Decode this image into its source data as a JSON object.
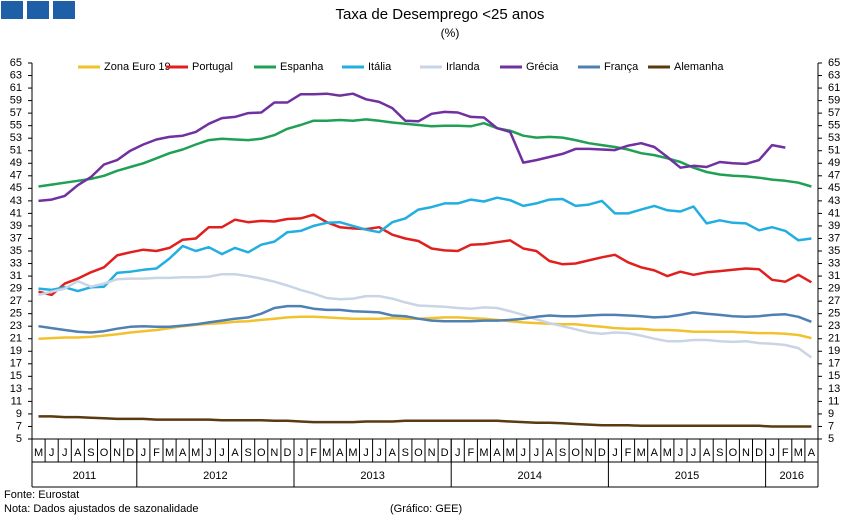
{
  "chart_data": {
    "type": "line",
    "title": "Taxa de Desemprego <25 anos",
    "subtitle": "(%)",
    "categories": [
      "M",
      "J",
      "J",
      "A",
      "S",
      "O",
      "N",
      "D",
      "J",
      "F",
      "M",
      "A",
      "M",
      "J",
      "J",
      "A",
      "S",
      "O",
      "N",
      "D",
      "J",
      "F",
      "M",
      "A",
      "M",
      "J",
      "J",
      "A",
      "S",
      "O",
      "N",
      "D",
      "J",
      "F",
      "M",
      "A",
      "M",
      "J",
      "J",
      "A",
      "S",
      "O",
      "N",
      "D",
      "J",
      "F",
      "M",
      "A",
      "M",
      "J",
      "J",
      "A",
      "S",
      "O",
      "N",
      "D",
      "J",
      "F",
      "M",
      "A"
    ],
    "years": [
      "2011",
      "2012",
      "2013",
      "2014",
      "2015",
      "2016"
    ],
    "ylim": [
      5,
      65
    ],
    "yticks": [
      5,
      7,
      9,
      11,
      13,
      15,
      17,
      19,
      21,
      23,
      25,
      27,
      29,
      31,
      33,
      35,
      37,
      39,
      41,
      43,
      45,
      47,
      49,
      51,
      53,
      55,
      57,
      59,
      61,
      63,
      65
    ],
    "series": [
      {
        "name": "Zona Euro 19",
        "color": "#f2c12e",
        "values": [
          21.0,
          21.1,
          21.2,
          21.2,
          21.3,
          21.5,
          21.7,
          22.0,
          22.2,
          22.4,
          22.7,
          23.0,
          23.2,
          23.4,
          23.5,
          23.7,
          23.8,
          24.0,
          24.2,
          24.4,
          24.5,
          24.5,
          24.4,
          24.3,
          24.2,
          24.2,
          24.2,
          24.3,
          24.2,
          24.2,
          24.3,
          24.4,
          24.4,
          24.3,
          24.2,
          24.0,
          23.8,
          23.6,
          23.5,
          23.4,
          23.3,
          23.3,
          23.1,
          22.9,
          22.7,
          22.6,
          22.6,
          22.4,
          22.4,
          22.3,
          22.1,
          22.1,
          22.1,
          22.1,
          22.0,
          21.9,
          21.9,
          21.8,
          21.6,
          21.1
        ]
      },
      {
        "name": "Portugal",
        "color": "#e0201e",
        "values": [
          28.5,
          28.0,
          29.8,
          30.6,
          31.6,
          32.4,
          34.3,
          34.8,
          35.2,
          35.0,
          35.5,
          36.8,
          37.0,
          38.8,
          38.8,
          40.0,
          39.6,
          39.8,
          39.7,
          40.1,
          40.2,
          40.8,
          39.6,
          38.8,
          38.6,
          38.5,
          38.8,
          37.6,
          37.0,
          36.6,
          35.4,
          35.1,
          35.0,
          36.0,
          36.1,
          36.4,
          36.7,
          35.4,
          35.0,
          33.4,
          32.9,
          33.0,
          33.5,
          34.0,
          34.4,
          33.2,
          32.4,
          31.9,
          31.0,
          31.7,
          31.2,
          31.6,
          31.8,
          32.0,
          32.2,
          32.1,
          30.4,
          30.1,
          31.2,
          30.0
        ]
      },
      {
        "name": "Espanha",
        "color": "#1fa055",
        "values": [
          45.3,
          45.6,
          45.9,
          46.2,
          46.5,
          47.0,
          47.8,
          48.4,
          49.0,
          49.8,
          50.6,
          51.2,
          52.0,
          52.7,
          52.9,
          52.8,
          52.7,
          52.9,
          53.5,
          54.5,
          55.1,
          55.8,
          55.8,
          55.9,
          55.8,
          56.0,
          55.8,
          55.5,
          55.3,
          55.1,
          54.9,
          55.0,
          55.0,
          54.9,
          55.4,
          54.6,
          54.2,
          53.4,
          53.1,
          53.2,
          53.1,
          52.7,
          52.2,
          51.9,
          51.6,
          51.2,
          50.6,
          50.3,
          49.8,
          49.2,
          48.3,
          47.6,
          47.2,
          47.0,
          46.9,
          46.7,
          46.4,
          46.2,
          45.9,
          45.3
        ]
      },
      {
        "name": "Itália",
        "color": "#22aee0",
        "values": [
          29.0,
          28.8,
          29.2,
          28.6,
          29.2,
          29.3,
          31.5,
          31.7,
          32.0,
          32.2,
          33.8,
          35.8,
          35.0,
          35.6,
          34.5,
          35.5,
          34.8,
          36.0,
          36.5,
          38.0,
          38.2,
          39.0,
          39.5,
          39.6,
          39.0,
          38.4,
          38.0,
          39.6,
          40.2,
          41.6,
          42.0,
          42.6,
          42.6,
          43.2,
          42.9,
          43.5,
          43.1,
          42.2,
          42.6,
          43.2,
          43.3,
          42.2,
          42.4,
          43.0,
          41.0,
          41.0,
          41.6,
          42.2,
          41.5,
          41.3,
          42.1,
          39.4,
          39.9,
          39.5,
          39.4,
          38.3,
          38.8,
          38.2,
          36.7,
          37.0
        ]
      },
      {
        "name": "Irlanda",
        "color": "#c9d5e5",
        "values": [
          28.0,
          28.5,
          29.0,
          30.2,
          29.3,
          29.8,
          30.5,
          30.6,
          30.6,
          30.7,
          30.7,
          30.8,
          30.8,
          30.9,
          31.3,
          31.3,
          31.0,
          30.6,
          30.1,
          29.5,
          28.8,
          28.2,
          27.5,
          27.3,
          27.4,
          27.8,
          27.8,
          27.4,
          26.8,
          26.3,
          26.2,
          26.1,
          25.9,
          25.8,
          26.0,
          25.9,
          25.4,
          24.8,
          24.1,
          23.5,
          23.0,
          22.5,
          22.0,
          21.8,
          22.0,
          21.9,
          21.5,
          21.0,
          20.6,
          20.6,
          20.8,
          20.8,
          20.6,
          20.5,
          20.6,
          20.3,
          20.2,
          20.0,
          19.5,
          18.0
        ]
      },
      {
        "name": "Grécia",
        "color": "#7030a0",
        "values": [
          43.0,
          43.2,
          43.8,
          45.5,
          46.8,
          48.8,
          49.5,
          51.0,
          52.0,
          52.8,
          53.2,
          53.4,
          54.0,
          55.3,
          56.2,
          56.4,
          57.0,
          57.1,
          58.7,
          58.7,
          60.0,
          60.0,
          60.1,
          59.8,
          60.1,
          59.2,
          58.8,
          57.8,
          55.8,
          55.7,
          56.9,
          57.2,
          57.1,
          56.4,
          56.3,
          54.6,
          54.0,
          49.1,
          49.5,
          50.0,
          50.5,
          51.3,
          51.3,
          51.2,
          51.1,
          51.8,
          52.2,
          51.6,
          50.0,
          48.3,
          48.6,
          48.4,
          49.2,
          49.0,
          48.9,
          49.5,
          51.9,
          51.5,
          null,
          null
        ]
      },
      {
        "name": "França",
        "color": "#4f80b3",
        "values": [
          23.0,
          22.7,
          22.4,
          22.1,
          22.0,
          22.2,
          22.6,
          22.9,
          23.0,
          22.9,
          22.9,
          23.1,
          23.3,
          23.6,
          23.9,
          24.2,
          24.4,
          25.0,
          25.9,
          26.2,
          26.2,
          25.8,
          25.6,
          25.6,
          25.4,
          25.3,
          25.2,
          24.7,
          24.6,
          24.2,
          23.9,
          23.8,
          23.8,
          23.8,
          23.9,
          23.9,
          24.0,
          24.2,
          24.5,
          24.7,
          24.6,
          24.6,
          24.7,
          24.8,
          24.8,
          24.7,
          24.6,
          24.4,
          24.5,
          24.8,
          25.2,
          25.0,
          24.8,
          24.6,
          24.5,
          24.6,
          24.8,
          24.9,
          24.5,
          23.7
        ]
      },
      {
        "name": "Alemanha",
        "color": "#5a3a10",
        "values": [
          8.6,
          8.6,
          8.5,
          8.5,
          8.4,
          8.3,
          8.2,
          8.2,
          8.2,
          8.1,
          8.1,
          8.1,
          8.1,
          8.1,
          8.0,
          8.0,
          8.0,
          8.0,
          7.9,
          7.9,
          7.8,
          7.7,
          7.7,
          7.7,
          7.7,
          7.8,
          7.8,
          7.8,
          7.9,
          7.9,
          7.9,
          7.9,
          7.9,
          7.9,
          7.9,
          7.9,
          7.8,
          7.7,
          7.6,
          7.6,
          7.5,
          7.4,
          7.3,
          7.2,
          7.2,
          7.2,
          7.1,
          7.1,
          7.1,
          7.1,
          7.1,
          7.1,
          7.1,
          7.1,
          7.1,
          7.1,
          7.0,
          7.0,
          7.0,
          7.0
        ]
      }
    ],
    "notes": [
      "Fonte: Eurostat",
      "Nota: Dados ajustados de sazonalidade"
    ],
    "credit": "(Gráfico: GEE)"
  }
}
